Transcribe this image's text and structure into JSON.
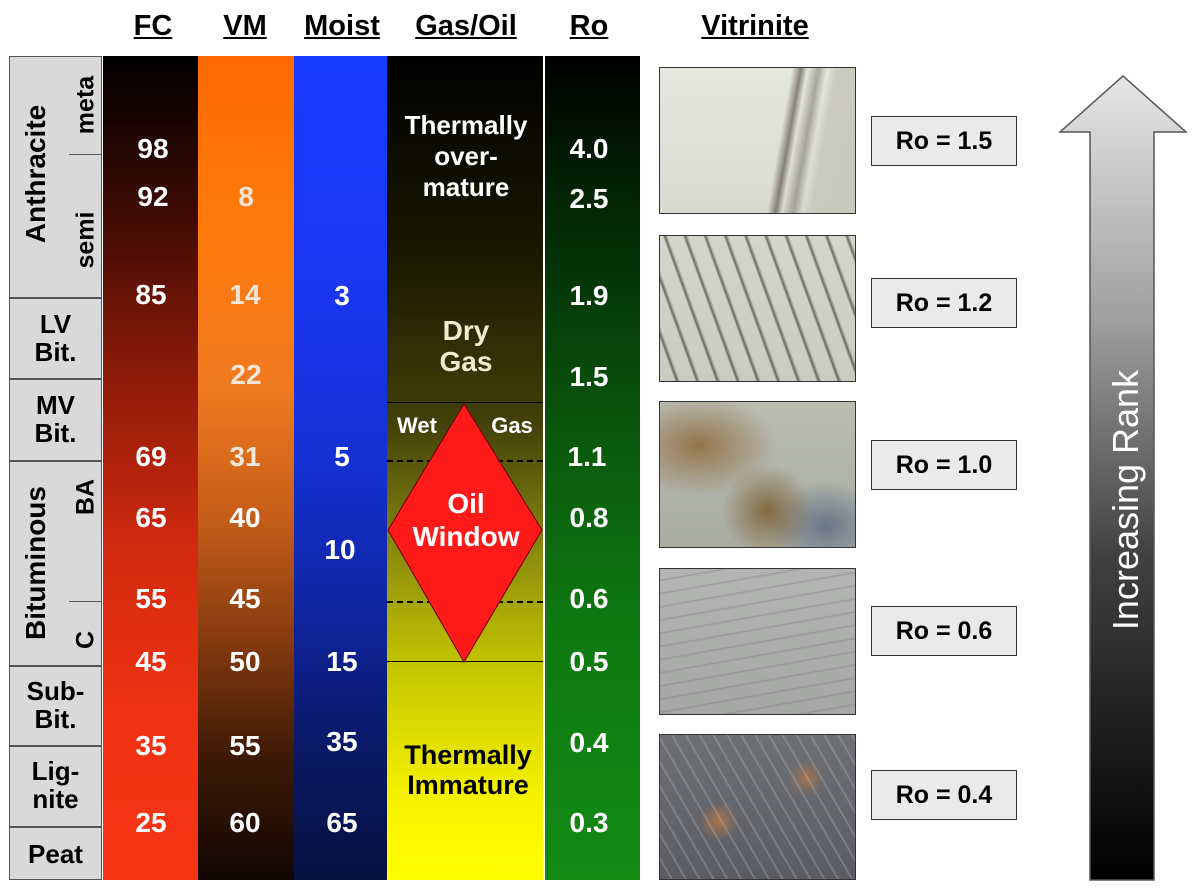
{
  "headers": {
    "fc": "FC",
    "vm": "VM",
    "moist": "Moist",
    "gas_oil": "Gas/Oil",
    "ro": "Ro",
    "vitrinite": "Vitrinite"
  },
  "rank": {
    "anthracite": "Anthracite",
    "meta": "meta",
    "semi": "semi",
    "lv_bit": [
      "LV",
      "Bit."
    ],
    "mv_bit": [
      "MV",
      "Bit."
    ],
    "bituminous": "Bituminous",
    "ba": "BA",
    "c": "C",
    "sub_bit": [
      "Sub-",
      "Bit."
    ],
    "lignite": [
      "Lig-",
      "nite"
    ],
    "peat": "Peat"
  },
  "fc_values": [
    "98",
    "92",
    "85",
    "69",
    "65",
    "55",
    "45",
    "35",
    "25"
  ],
  "vm_values": [
    "8",
    "14",
    "22",
    "31",
    "40",
    "45",
    "50",
    "55",
    "60"
  ],
  "moist_values": [
    "3",
    "5",
    "10",
    "15",
    "35",
    "65"
  ],
  "ro_values": [
    "4.0",
    "2.5",
    "1.9",
    "1.5",
    "1.1",
    "0.8",
    "0.6",
    "0.5",
    "0.4",
    "0.3"
  ],
  "gas_oil": {
    "overmature": [
      "Thermally",
      "over-",
      "mature"
    ],
    "dry_gas": [
      "Dry",
      "Gas"
    ],
    "wet": "Wet",
    "gas": "Gas",
    "oil_window": [
      "Oil",
      "Window"
    ],
    "immature": [
      "Thermally",
      "Immature"
    ]
  },
  "vitrinite_labels": [
    "Ro = 1.5",
    "Ro = 1.2",
    "Ro = 1.0",
    "Ro = 0.6",
    "Ro = 0.4"
  ],
  "arrow_label": "Increasing Rank",
  "colors": {
    "oil_window": "#ff1a1a",
    "rank_cell": "#d9d9d9",
    "ro_box": "#eaeaea"
  }
}
